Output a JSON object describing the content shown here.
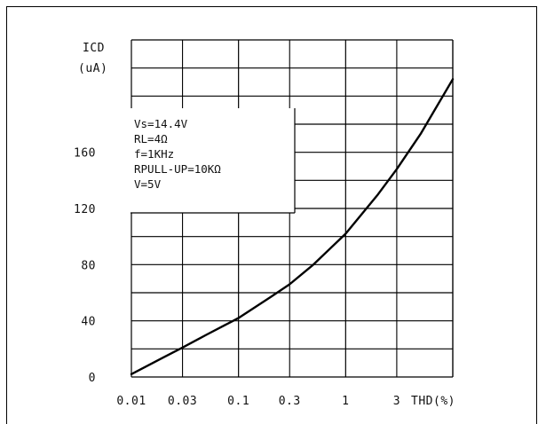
{
  "chart_data": {
    "type": "line",
    "title": "",
    "ylabel_lines": [
      "ICD",
      "(uA)"
    ],
    "xlabel": "THD(%)",
    "x_scale": "log",
    "x_ticks": [
      0.01,
      0.03,
      0.1,
      0.3,
      1,
      3
    ],
    "x_tick_labels": [
      "0.01",
      "0.03",
      "0.1",
      "0.3",
      "1",
      "3"
    ],
    "y_ticks": [
      0,
      40,
      80,
      120,
      160
    ],
    "y_tick_labels": [
      "0",
      "40",
      "80",
      "120",
      "160"
    ],
    "xlim": [
      0.01,
      10
    ],
    "ylim": [
      0,
      240
    ],
    "grid": true,
    "conditions": [
      "Vs=14.4V",
      "RL=4Ω",
      "f=1KHz",
      "RPULL-UP=10KΩ",
      "V=5V"
    ],
    "series": [
      {
        "x": [
          0.01,
          0.02,
          0.03,
          0.05,
          0.1,
          0.2,
          0.3,
          0.5,
          1,
          2,
          3,
          5,
          10
        ],
        "y": [
          2,
          14,
          21,
          30,
          42,
          57,
          66,
          80,
          102,
          130,
          148,
          173,
          212
        ]
      }
    ]
  }
}
